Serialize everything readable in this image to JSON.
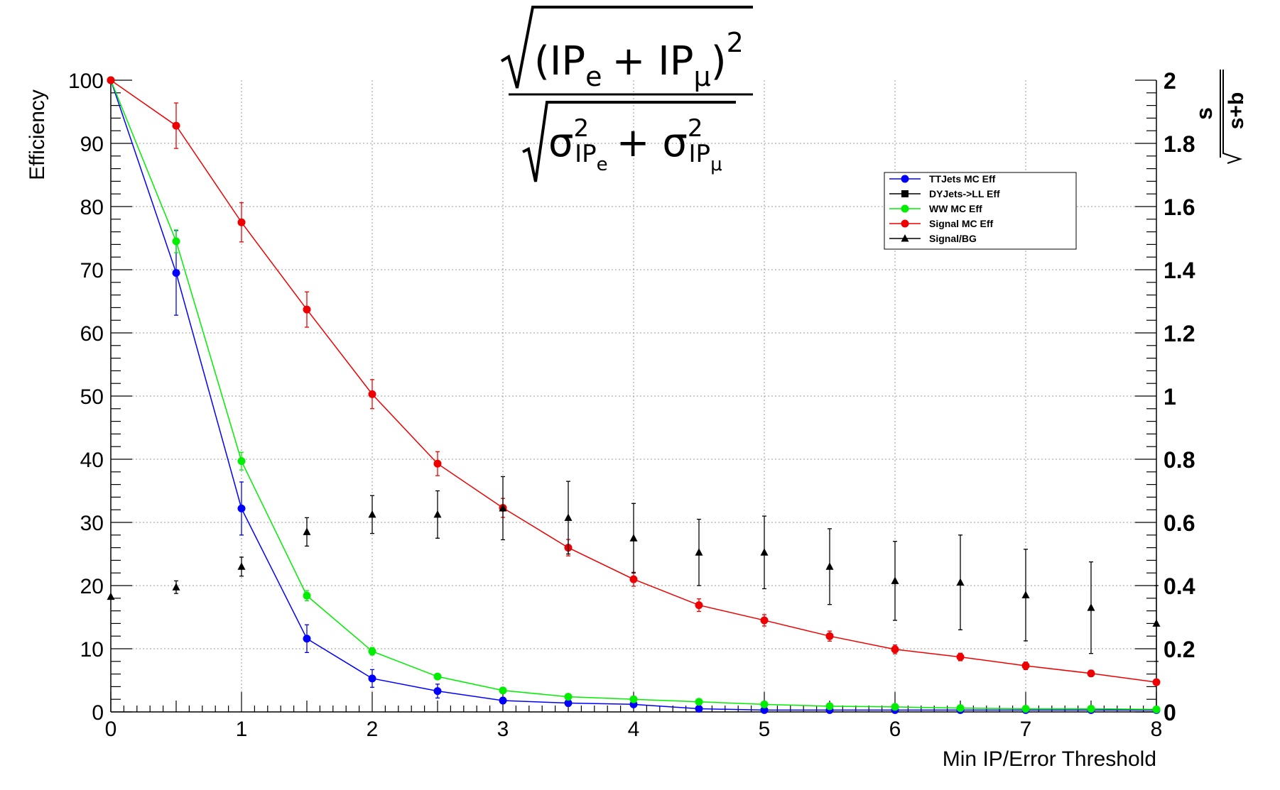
{
  "chart_data": {
    "type": "line",
    "title": {
      "numerator": {
        "open": "(IP",
        "sub1": "e",
        "plus": "+ IP",
        "sub2": "μ",
        "close": ")",
        "sup": "2"
      },
      "denominator": {
        "s1": "σ",
        "sup1": "2",
        "sub1": "IP",
        "subsub1": "e",
        "plus": "+ σ",
        "sup2": "2",
        "sub2": "IP",
        "subsub2": "μ"
      }
    },
    "xlabel": "Min IP/Error Threshold",
    "ylabel": "Efficiency",
    "ylabel_right": {
      "numerator": "s",
      "denominator": "s+b"
    },
    "xlim": [
      0,
      8
    ],
    "ylim": [
      0,
      100
    ],
    "ylim_right": [
      0,
      2
    ],
    "grid": true,
    "x_ticks": [
      "0",
      "1",
      "2",
      "3",
      "4",
      "5",
      "6",
      "7",
      "8"
    ],
    "y_ticks": [
      "0",
      "10",
      "20",
      "30",
      "40",
      "50",
      "60",
      "70",
      "80",
      "90",
      "100"
    ],
    "y_right_ticks": [
      "0",
      "0.2",
      "0.4",
      "0.6",
      "0.8",
      "1",
      "1.2",
      "1.4",
      "1.6",
      "1.8",
      "2"
    ],
    "legend_position": "top-right",
    "series": [
      {
        "name": "TTJets MC Eff",
        "color": "#0000ff",
        "marker": "circle",
        "axis": "left",
        "line": true,
        "x": [
          0,
          0.5,
          1,
          1.5,
          2,
          2.5,
          3,
          3.5,
          4,
          4.5,
          5,
          5.5,
          6,
          6.5,
          7,
          7.5,
          8
        ],
        "y": [
          100,
          69.5,
          32.2,
          11.6,
          5.3,
          3.3,
          1.8,
          1.4,
          1.2,
          0.5,
          0.3,
          0.3,
          0.3,
          0.3,
          0.3,
          0.3,
          0.3
        ],
        "err": [
          0,
          6.7,
          4.2,
          2.2,
          1.4,
          1.1,
          0.5,
          0.5,
          0.4,
          0.2,
          0.1,
          0.1,
          0.1,
          0.1,
          0.1,
          0.1,
          0.1
        ]
      },
      {
        "name": "DYJets->LL Eff",
        "color": "#000000",
        "marker": "square",
        "axis": "left",
        "line": false,
        "x": [],
        "y": [],
        "err": []
      },
      {
        "name": "WW MC Eff",
        "color": "#00ee00",
        "marker": "circle",
        "axis": "left",
        "line": true,
        "x": [
          0,
          0.5,
          1,
          1.5,
          2,
          2.5,
          3,
          3.5,
          4,
          4.5,
          5,
          5.5,
          6,
          6.5,
          7,
          7.5,
          8
        ],
        "y": [
          100,
          74.5,
          39.7,
          18.4,
          9.6,
          5.6,
          3.4,
          2.4,
          2.0,
          1.6,
          1.2,
          0.9,
          0.8,
          0.6,
          0.5,
          0.5,
          0.4
        ],
        "err": [
          0,
          1.8,
          1.4,
          0.8,
          0.6,
          0.4,
          0.3,
          0.2,
          0.2,
          0.2,
          0.2,
          0.1,
          0.1,
          0.1,
          0.1,
          0.1,
          0.1
        ]
      },
      {
        "name": "Signal MC Eff",
        "color": "#ee0000",
        "marker": "circle",
        "axis": "left",
        "line": true,
        "x": [
          0,
          0.5,
          1,
          1.5,
          2,
          2.5,
          3,
          3.5,
          4,
          4.5,
          5,
          5.5,
          6,
          6.5,
          7,
          7.5,
          8
        ],
        "y": [
          100,
          92.8,
          77.5,
          63.7,
          50.3,
          39.3,
          32.3,
          26.0,
          21.0,
          16.9,
          14.5,
          12.0,
          9.9,
          8.7,
          7.3,
          6.1,
          4.7
        ],
        "err": [
          0,
          3.6,
          3.1,
          2.8,
          2.3,
          1.9,
          1.5,
          1.3,
          1.1,
          1.0,
          0.9,
          0.8,
          0.7,
          0.6,
          0.6,
          0.5,
          0.4
        ]
      },
      {
        "name": "Signal/BG",
        "color": "#000000",
        "marker": "triangle",
        "axis": "right",
        "line": false,
        "x": [
          0,
          0.5,
          1,
          1.5,
          2,
          2.5,
          3,
          3.5,
          4,
          4.5,
          5,
          5.5,
          6,
          6.5,
          7,
          7.5,
          8
        ],
        "y": [
          0.365,
          0.395,
          0.46,
          0.57,
          0.625,
          0.625,
          0.645,
          0.615,
          0.55,
          0.505,
          0.505,
          0.46,
          0.415,
          0.41,
          0.37,
          0.33,
          0.28
        ],
        "err": [
          0.0,
          0.02,
          0.03,
          0.045,
          0.06,
          0.075,
          0.1,
          0.115,
          0.11,
          0.105,
          0.115,
          0.12,
          0.125,
          0.15,
          0.145,
          0.145,
          0.12
        ]
      }
    ]
  }
}
